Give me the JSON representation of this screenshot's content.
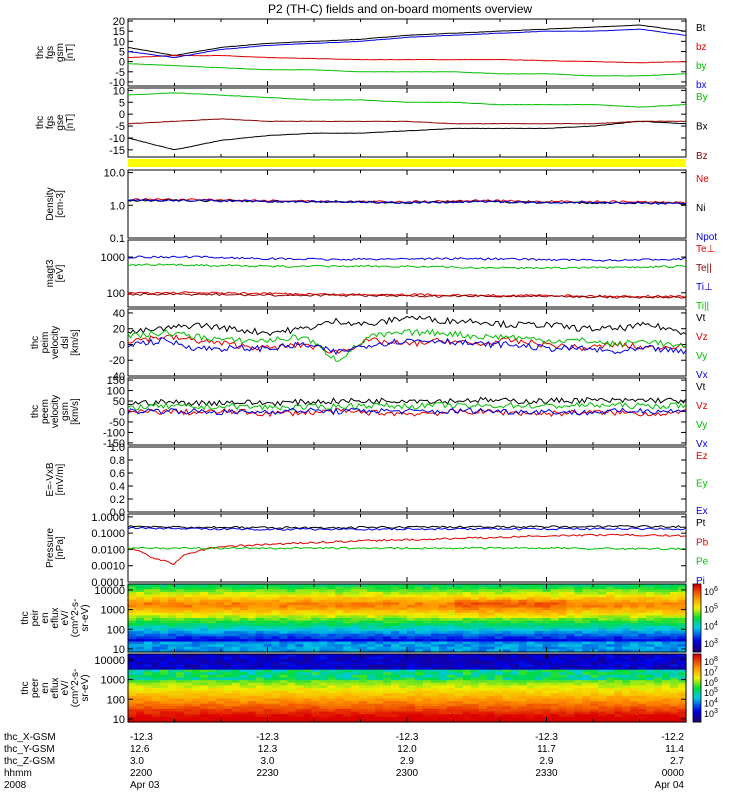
{
  "title": "P2 (TH-C) fields and on-board moments overview",
  "colors": {
    "black": "#000000",
    "red": "#e00000",
    "green": "#00e000",
    "blue": "#0000e0",
    "darkred": "#8b0000",
    "yellow": "#ffff00"
  },
  "chart_data": [
    {
      "type": "line",
      "panel": "fgs_gsm",
      "ylabel": [
        "thc",
        "fgs",
        "gsm",
        "[nT]"
      ],
      "ylim": [
        -12,
        21
      ],
      "yticks": [
        "20",
        "15",
        "10",
        "5",
        "0",
        "-5",
        "-10"
      ],
      "yticks_values": [
        20,
        15,
        10,
        5,
        0,
        -5,
        -10
      ],
      "x": [
        2200,
        2210,
        2220,
        2230,
        2240,
        2250,
        2300,
        2310,
        2320,
        2330,
        2340,
        2350,
        2400
      ],
      "series": [
        {
          "name": "Bt",
          "color": "#000000",
          "values": [
            7,
            3,
            7,
            9,
            10,
            11,
            13,
            14,
            15,
            16,
            17,
            18,
            15
          ]
        },
        {
          "name": "bz",
          "color": "#e00000",
          "values": [
            2,
            3,
            3,
            2,
            1.5,
            1,
            1,
            1,
            1,
            0.5,
            0,
            -0.5,
            0
          ]
        },
        {
          "name": "by",
          "color": "#00c000",
          "values": [
            -1,
            -2,
            -3,
            -4,
            -4,
            -5,
            -5,
            -5,
            -6,
            -6,
            -7,
            -7,
            -6
          ]
        },
        {
          "name": "bx",
          "color": "#0000e0",
          "values": [
            5,
            2,
            6,
            8,
            9,
            10,
            12,
            13,
            14,
            15,
            15,
            16,
            13
          ]
        }
      ]
    },
    {
      "type": "line",
      "panel": "fgs_gse",
      "ylabel": [
        "thc",
        "fgs",
        "gse",
        "[nT]"
      ],
      "ylim": [
        -18,
        11
      ],
      "yticks": [
        "10",
        "5",
        "0",
        "-5",
        "-10",
        "-15"
      ],
      "yticks_values": [
        10,
        5,
        0,
        -5,
        -10,
        -15
      ],
      "x": [
        2200,
        2210,
        2220,
        2230,
        2240,
        2250,
        2300,
        2310,
        2320,
        2330,
        2340,
        2350,
        2400
      ],
      "series": [
        {
          "name": "By",
          "color": "#00c000",
          "values": [
            8,
            9,
            8,
            7,
            6,
            6,
            5,
            5,
            4,
            4,
            4,
            3,
            4
          ]
        },
        {
          "name": "Bx",
          "color": "#000000",
          "values": [
            -10,
            -15,
            -11,
            -9,
            -8,
            -8,
            -7,
            -6,
            -6,
            -6,
            -5,
            -3,
            -4
          ]
        },
        {
          "name": "Bz",
          "color": "#8b0000",
          "values": [
            -4,
            -3,
            -2,
            -3,
            -3,
            -3,
            -3,
            -4,
            -4,
            -4,
            -4,
            -3,
            -3
          ]
        }
      ]
    },
    {
      "type": "line",
      "panel": "density",
      "yscale": "log",
      "ylabel": [
        "Density",
        "[cm-3]"
      ],
      "ylim": [
        0.1,
        12
      ],
      "yticks": [
        "10.0",
        "1.0",
        "0.1"
      ],
      "yticks_values": [
        10,
        1,
        0.1
      ],
      "x": [
        2200,
        2215,
        2230,
        2245,
        2300,
        2315,
        2330,
        2345,
        2400
      ],
      "series": [
        {
          "name": "Ne",
          "color": "#e00000",
          "values": [
            1.5,
            1.5,
            1.4,
            1.3,
            1.3,
            1.4,
            1.3,
            1.3,
            1.2
          ]
        },
        {
          "name": "Ni",
          "color": "#000000",
          "values": [
            1.4,
            1.4,
            1.3,
            1.3,
            1.2,
            1.3,
            1.2,
            1.2,
            1.1
          ]
        },
        {
          "name": "Npot",
          "color": "#0000e0",
          "values": [
            1.4,
            1.4,
            1.3,
            1.3,
            1.2,
            1.3,
            1.2,
            1.2,
            1.1
          ]
        }
      ]
    },
    {
      "type": "line",
      "panel": "temperature",
      "yscale": "log",
      "ylabel": [
        "magt3",
        "[eV]"
      ],
      "ylim": [
        40,
        3000
      ],
      "yticks": [
        "1000",
        "100"
      ],
      "yticks_values": [
        1000,
        100
      ],
      "x": [
        2200,
        2215,
        2230,
        2245,
        2300,
        2315,
        2330,
        2345,
        2400
      ],
      "series": [
        {
          "name": "Te⊥",
          "color": "#e00000",
          "values": [
            100,
            100,
            95,
            90,
            90,
            85,
            85,
            80,
            80
          ]
        },
        {
          "name": "Te||",
          "color": "#8b0000",
          "values": [
            90,
            90,
            85,
            85,
            80,
            80,
            80,
            75,
            75
          ]
        },
        {
          "name": "Ti⊥",
          "color": "#0000e0",
          "values": [
            1000,
            1000,
            900,
            850,
            900,
            900,
            850,
            800,
            900
          ]
        },
        {
          "name": "Ti||",
          "color": "#00c000",
          "values": [
            600,
            600,
            550,
            550,
            550,
            500,
            500,
            500,
            550
          ]
        }
      ]
    },
    {
      "type": "line",
      "panel": "velocity_dsl",
      "ylabel": [
        "thc",
        "peim",
        "velocity",
        "dsl",
        "[km/s]"
      ],
      "ylim": [
        -40,
        45
      ],
      "yticks": [
        "40",
        "20",
        "0",
        "-20",
        "-40"
      ],
      "yticks_values": [
        40,
        20,
        0,
        -20,
        -40
      ],
      "x": [
        2200,
        2208,
        2215,
        2222,
        2230,
        2238,
        2245,
        2252,
        2300,
        2308,
        2315,
        2322,
        2330,
        2338,
        2345,
        2352,
        2400
      ],
      "series": [
        {
          "name": "Vt",
          "color": "#000000",
          "values": [
            15,
            20,
            25,
            20,
            15,
            20,
            30,
            25,
            35,
            30,
            30,
            25,
            25,
            20,
            20,
            25,
            15
          ]
        },
        {
          "name": "Vz",
          "color": "#e00000",
          "values": [
            5,
            10,
            5,
            0,
            -5,
            0,
            -10,
            5,
            0,
            5,
            0,
            5,
            0,
            -5,
            0,
            -5,
            0
          ]
        },
        {
          "name": "Vy",
          "color": "#00c000",
          "values": [
            10,
            15,
            10,
            5,
            5,
            10,
            -20,
            10,
            15,
            15,
            10,
            10,
            5,
            5,
            0,
            5,
            -5
          ]
        },
        {
          "name": "Vx",
          "color": "#0000e0",
          "values": [
            0,
            5,
            -5,
            -5,
            -5,
            0,
            -10,
            0,
            5,
            5,
            0,
            0,
            -5,
            -5,
            -10,
            -5,
            -10
          ]
        }
      ]
    },
    {
      "type": "line",
      "panel": "velocity_gsm",
      "ylabel": [
        "thc",
        "peem",
        "velocity",
        "gsm",
        "[km/s]"
      ],
      "ylim": [
        -160,
        160
      ],
      "yticks": [
        "150",
        "100",
        "50",
        "0",
        "-50",
        "-100",
        "-150"
      ],
      "yticks_values": [
        150,
        100,
        50,
        0,
        -50,
        -100,
        -150
      ],
      "x": [
        2200,
        2208,
        2215,
        2222,
        2230,
        2238,
        2245,
        2252,
        2300,
        2308,
        2315,
        2322,
        2330,
        2338,
        2345,
        2352,
        2400
      ],
      "series": [
        {
          "name": "Vt",
          "color": "#000000",
          "values": [
            40,
            45,
            40,
            45,
            40,
            45,
            50,
            50,
            55,
            50,
            55,
            50,
            50,
            55,
            50,
            55,
            50
          ]
        },
        {
          "name": "Vz",
          "color": "#e00000",
          "values": [
            -5,
            0,
            -5,
            0,
            -10,
            -5,
            0,
            -5,
            -10,
            -5,
            0,
            -5,
            -10,
            -5,
            -5,
            -10,
            -5
          ]
        },
        {
          "name": "Vy",
          "color": "#00c000",
          "values": [
            20,
            25,
            20,
            25,
            20,
            20,
            25,
            30,
            25,
            30,
            25,
            30,
            25,
            30,
            30,
            25,
            30
          ]
        },
        {
          "name": "Vx",
          "color": "#0000e0",
          "values": [
            0,
            5,
            0,
            -5,
            0,
            5,
            0,
            5,
            0,
            0,
            5,
            0,
            0,
            -5,
            0,
            5,
            0
          ]
        }
      ]
    },
    {
      "type": "line",
      "panel": "efield",
      "ylabel": [
        "E=-VxB",
        "[mV/m]"
      ],
      "ylim": [
        0,
        1
      ],
      "yticks": [
        "1.0",
        "0.8",
        "0.6",
        "0.4",
        "0.2",
        "0.0"
      ],
      "yticks_values": [
        1,
        0.8,
        0.6,
        0.4,
        0.2,
        0
      ],
      "x": [],
      "series": [
        {
          "name": "Ez",
          "color": "#e00000",
          "values": []
        },
        {
          "name": "Ey",
          "color": "#00c000",
          "values": []
        },
        {
          "name": "Ex",
          "color": "#0000e0",
          "values": []
        }
      ]
    },
    {
      "type": "line",
      "panel": "pressure",
      "yscale": "log",
      "ylabel": [
        "Pressure",
        "[nPa]"
      ],
      "ylim": [
        0.0001,
        1.5
      ],
      "yticks": [
        "1.0000",
        "0.1000",
        "0.0100",
        "0.0010",
        "0.0001"
      ],
      "yticks_values": [
        1,
        0.1,
        0.01,
        0.001,
        0.0001
      ],
      "x": [
        2200,
        2205,
        2210,
        2215,
        2220,
        2230,
        2245,
        2300,
        2315,
        2330,
        2345,
        2400
      ],
      "series": [
        {
          "name": "Pt",
          "color": "#000000",
          "values": [
            0.25,
            0.25,
            0.24,
            0.23,
            0.23,
            0.22,
            0.22,
            0.23,
            0.24,
            0.25,
            0.26,
            0.25
          ]
        },
        {
          "name": "Pb",
          "color": "#e00000",
          "values": [
            0.012,
            0.003,
            0.0012,
            0.008,
            0.015,
            0.02,
            0.03,
            0.04,
            0.05,
            0.07,
            0.08,
            0.07
          ]
        },
        {
          "name": "Pe",
          "color": "#00c000",
          "values": [
            0.012,
            0.012,
            0.012,
            0.012,
            0.012,
            0.012,
            0.012,
            0.012,
            0.012,
            0.012,
            0.011,
            0.011
          ]
        },
        {
          "name": "Pi",
          "color": "#0000e0",
          "values": [
            0.2,
            0.2,
            0.19,
            0.18,
            0.18,
            0.17,
            0.17,
            0.18,
            0.18,
            0.18,
            0.19,
            0.18
          ]
        }
      ]
    },
    {
      "type": "heatmap",
      "panel": "peir_en_eflux",
      "ylabel": [
        "thc",
        "peir",
        "en",
        "eflux",
        "eV/",
        "(cm^2-s-",
        "sr-eV)"
      ],
      "yscale": "log",
      "ylim": [
        7,
        20000
      ],
      "yticks": [
        "10000",
        "1000",
        "100",
        "10"
      ],
      "yticks_values": [
        10000,
        1000,
        100,
        10
      ],
      "colorbar_ticks": [
        "10^6",
        "10^5",
        "10^4",
        "10^3"
      ]
    },
    {
      "type": "heatmap",
      "panel": "peer_en_eflux",
      "ylabel": [
        "thc",
        "peer",
        "en",
        "eflux",
        "eV/",
        "(cm^2-s-",
        "sr-eV)"
      ],
      "yscale": "log",
      "ylim": [
        7,
        20000
      ],
      "yticks": [
        "10000",
        "1000",
        "100",
        "10"
      ],
      "yticks_values": [
        10000,
        1000,
        100,
        10
      ],
      "colorbar_ticks": [
        "10^8",
        "10^7",
        "10^6",
        "10^5",
        "10^4",
        "10^3"
      ]
    }
  ],
  "xaxis": {
    "labels": [
      "thc_X-GSM",
      "thc_Y-GSM",
      "thc_Z-GSM",
      "hhmm",
      "2008"
    ],
    "ticks": [
      {
        "x": 2200,
        "rows": [
          "-12.3",
          "12.6",
          "3.0",
          "2200",
          "Apr 03"
        ]
      },
      {
        "x": 2230,
        "rows": [
          "-12.3",
          "12.3",
          "3.0",
          "2230",
          ""
        ]
      },
      {
        "x": 2300,
        "rows": [
          "-12.3",
          "12.0",
          "2.9",
          "2300",
          ""
        ]
      },
      {
        "x": 2330,
        "rows": [
          "-12.3",
          "11.7",
          "2.9",
          "2330",
          ""
        ]
      },
      {
        "x": 2400,
        "rows": [
          "-12.2",
          "11.4",
          "2.7",
          "0000",
          "Apr 04"
        ]
      }
    ]
  }
}
